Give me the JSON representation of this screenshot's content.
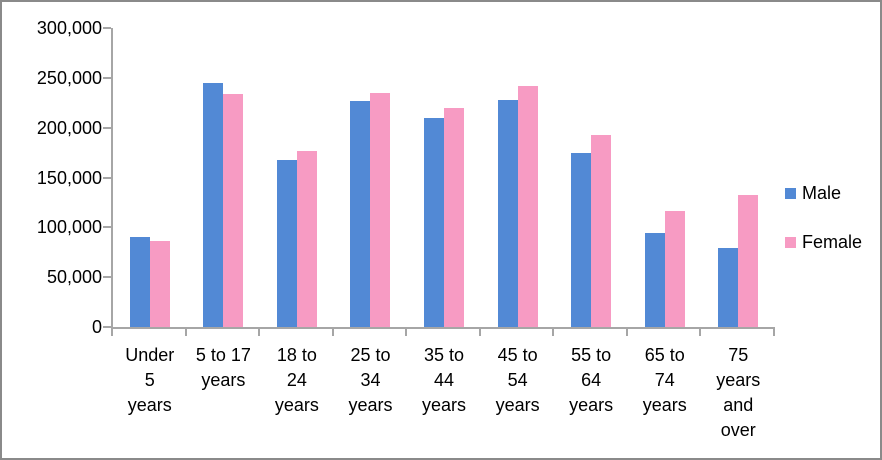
{
  "chart_data": {
    "type": "bar",
    "title": "",
    "xlabel": "",
    "ylabel": "",
    "categories": [
      "Under 5 years",
      "5 to 17 years",
      "18 to 24 years",
      "25 to 34 years",
      "35 to 44 years",
      "45 to 54 years",
      "55 to 64 years",
      "65 to 74 years",
      "75 years and over"
    ],
    "category_label_lines": [
      [
        "Under",
        "5",
        "years"
      ],
      [
        "5 to 17",
        "years"
      ],
      [
        "18 to",
        "24",
        "years"
      ],
      [
        "25 to",
        "34",
        "years"
      ],
      [
        "35 to",
        "44",
        "years"
      ],
      [
        "45 to",
        "54",
        "years"
      ],
      [
        "55 to",
        "64",
        "years"
      ],
      [
        "65 to",
        "74",
        "years"
      ],
      [
        "75",
        "years",
        "and",
        "over"
      ]
    ],
    "series": [
      {
        "name": "Male",
        "color": "#5289d5",
        "values": [
          90000,
          245000,
          168000,
          227000,
          210000,
          228000,
          175000,
          94000,
          79000
        ]
      },
      {
        "name": "Female",
        "color": "#f79bc3",
        "values": [
          86000,
          234000,
          177000,
          235000,
          220000,
          242000,
          193000,
          116000,
          132000
        ]
      }
    ],
    "ylim": [
      0,
      300000
    ],
    "ytick_step": 50000,
    "ytick_labels": [
      "0",
      "50,000",
      "100,000",
      "150,000",
      "200,000",
      "250,000",
      "300,000"
    ],
    "grid": false,
    "legend_position": "right"
  },
  "style": {
    "axis_color": "#a6a6a6",
    "text_color": "#000000",
    "border_color": "#8a8a8a",
    "background": "#ffffff"
  }
}
